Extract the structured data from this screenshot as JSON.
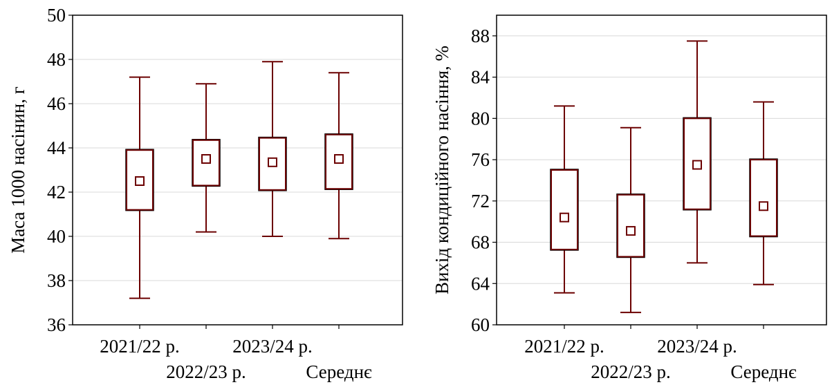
{
  "chart_data": [
    {
      "type": "box",
      "ylabel": "Маса 1000 насінин, г",
      "ylim": [
        36,
        50
      ],
      "yticks": [
        36,
        38,
        40,
        42,
        44,
        46,
        48,
        50
      ],
      "categories": [
        "2021/22 р.",
        "2022/23 р.",
        "2023/24 р.",
        "Середнє"
      ],
      "grid": true,
      "boxes": [
        {
          "category": "2021/22 р.",
          "min": 37.2,
          "q1": 41.2,
          "mean": 42.5,
          "q3": 43.9,
          "max": 47.2
        },
        {
          "category": "2022/23 р.",
          "min": 40.2,
          "q1": 42.3,
          "mean": 43.5,
          "q3": 44.35,
          "max": 46.9
        },
        {
          "category": "2023/24 р.",
          "min": 40.0,
          "q1": 42.1,
          "mean": 43.35,
          "q3": 44.45,
          "max": 47.9
        },
        {
          "category": "Середнє",
          "min": 39.9,
          "q1": 42.15,
          "mean": 43.5,
          "q3": 44.6,
          "max": 47.4
        }
      ]
    },
    {
      "type": "box",
      "ylabel": "Вихід кондиційного насіння, %",
      "ylim": [
        60,
        90
      ],
      "yticks": [
        60,
        64,
        68,
        72,
        76,
        80,
        84,
        88
      ],
      "categories": [
        "2021/22 р.",
        "2022/23 р.",
        "2023/24 р.",
        "Середнє"
      ],
      "grid": true,
      "boxes": [
        {
          "category": "2021/22 р.",
          "min": 63.1,
          "q1": 67.3,
          "mean": 70.4,
          "q3": 75.0,
          "max": 81.2
        },
        {
          "category": "2022/23 р.",
          "min": 61.2,
          "q1": 66.6,
          "mean": 69.1,
          "q3": 72.6,
          "max": 79.1
        },
        {
          "category": "2023/24 р.",
          "min": 66.0,
          "q1": 71.2,
          "mean": 75.5,
          "q3": 80.0,
          "max": 87.5
        },
        {
          "category": "Середнє",
          "min": 63.9,
          "q1": 68.6,
          "mean": 71.5,
          "q3": 76.0,
          "max": 81.6
        }
      ]
    }
  ],
  "colors": {
    "box": "#6b0000",
    "grid": "#d8d8d8",
    "axis": "#000000"
  }
}
